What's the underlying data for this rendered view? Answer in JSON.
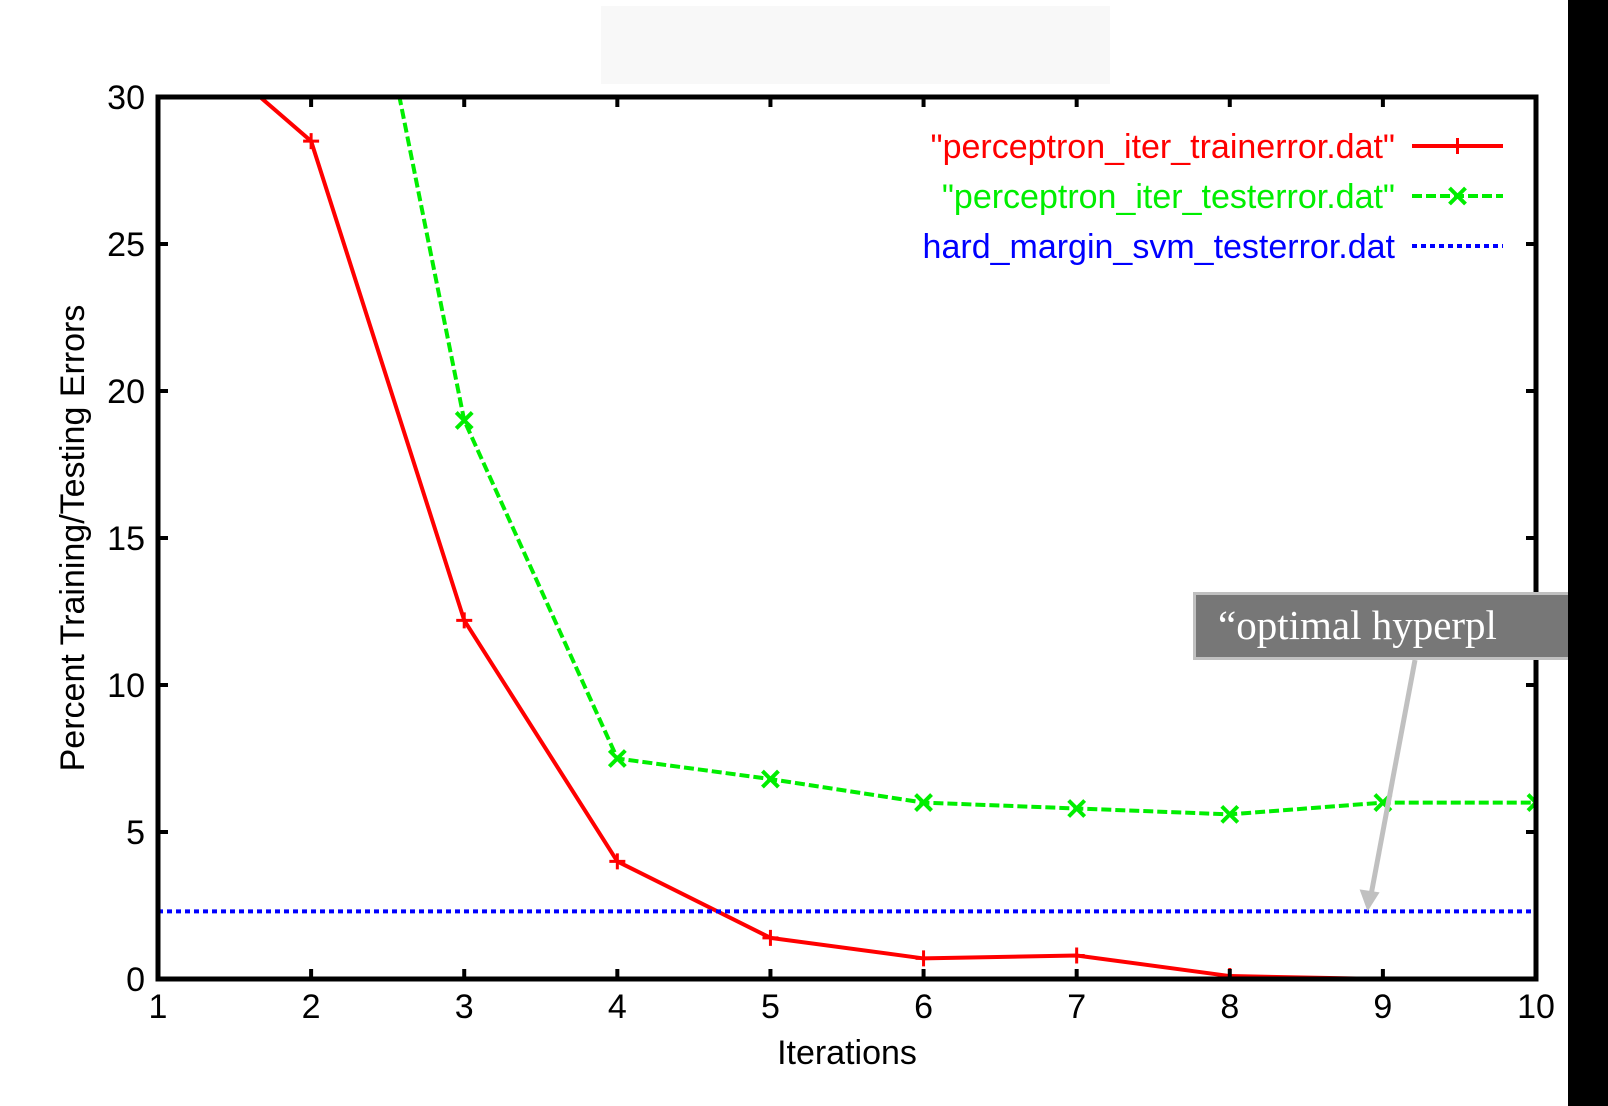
{
  "chart_data": {
    "type": "line",
    "title": "",
    "xlabel": "Iterations",
    "ylabel": "Percent Training/Testing Errors",
    "xlim": [
      1,
      10
    ],
    "ylim": [
      0,
      30
    ],
    "xticks": [
      1,
      2,
      3,
      4,
      5,
      6,
      7,
      8,
      9,
      10
    ],
    "yticks": [
      0,
      5,
      10,
      15,
      20,
      25,
      30
    ],
    "grid": false,
    "legend_position": "top-right",
    "series": [
      {
        "name": "\"perceptron_iter_trainerror.dat\"",
        "color": "#ff0000",
        "style": "solid",
        "marker": "plus",
        "x": [
          2,
          3,
          4,
          5,
          6,
          7,
          8,
          9,
          10
        ],
        "y": [
          28.5,
          12.2,
          4.0,
          1.4,
          0.7,
          0.8,
          0.1,
          0.0,
          0.0
        ],
        "y_before_first": 33.0
      },
      {
        "name": "\"perceptron_iter_testerror.dat\"",
        "color": "#00ee00",
        "style": "dashed",
        "marker": "cross",
        "x": [
          3,
          4,
          5,
          6,
          7,
          8,
          9,
          10
        ],
        "y": [
          19.0,
          7.5,
          6.8,
          6.0,
          5.8,
          5.6,
          6.0,
          6.0
        ],
        "y_before_first": 45.0
      },
      {
        "name": "hard_margin_svm_testerror.dat",
        "color": "#0000ff",
        "style": "dotted",
        "marker": "none",
        "x": [
          1,
          10
        ],
        "y": [
          2.3,
          2.3
        ]
      }
    ],
    "annotations": [
      {
        "text": "“optimal hyperpl",
        "points_to": {
          "x": 8.9,
          "y": 2.3
        }
      }
    ]
  }
}
